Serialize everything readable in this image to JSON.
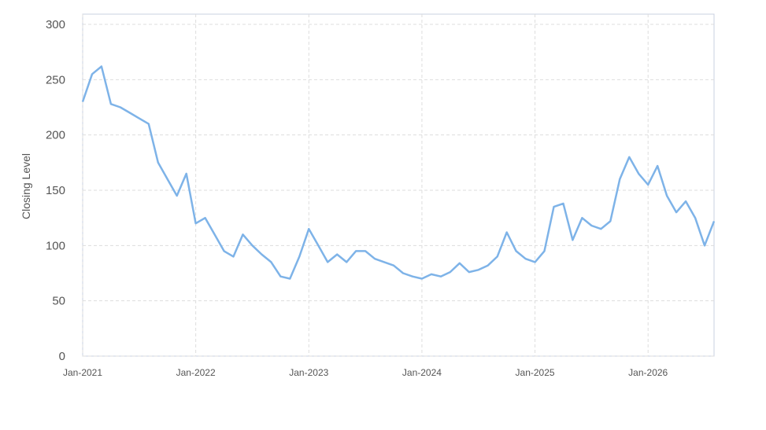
{
  "chart_data": {
    "type": "line",
    "y_label": "Closing Level",
    "x": [
      "2021-01",
      "2021-02",
      "2021-03",
      "2021-04",
      "2021-05",
      "2021-06",
      "2021-07",
      "2021-08",
      "2021-09",
      "2021-10",
      "2021-11",
      "2021-12",
      "2022-01",
      "2022-02",
      "2022-03",
      "2022-04",
      "2022-05",
      "2022-06",
      "2022-07",
      "2022-08",
      "2022-09",
      "2022-10",
      "2022-11",
      "2022-12",
      "2023-01",
      "2023-02",
      "2023-03",
      "2023-04",
      "2023-05",
      "2023-06",
      "2023-07",
      "2023-08",
      "2023-09",
      "2023-10",
      "2023-11",
      "2023-12",
      "2024-01",
      "2024-02",
      "2024-03",
      "2024-04",
      "2024-05",
      "2024-06",
      "2024-07",
      "2024-08",
      "2024-09",
      "2024-10",
      "2024-11",
      "2024-12",
      "2025-01",
      "2025-02",
      "2025-03",
      "2025-04",
      "2025-05",
      "2025-06",
      "2025-07",
      "2025-08",
      "2025-09",
      "2025-10",
      "2025-11",
      "2025-12",
      "2026-01",
      "2026-02",
      "2026-03",
      "2026-04",
      "2026-05",
      "2026-06",
      "2026-07",
      "2026-08"
    ],
    "series": [
      {
        "name": "Closing Level",
        "color": "#7eb3e8",
        "values": [
          230,
          255,
          262,
          228,
          225,
          220,
          215,
          210,
          175,
          160,
          145,
          165,
          120,
          125,
          110,
          95,
          90,
          110,
          100,
          92,
          85,
          72,
          70,
          90,
          115,
          100,
          85,
          92,
          85,
          95,
          95,
          88,
          85,
          82,
          75,
          72,
          70,
          74,
          72,
          76,
          84,
          76,
          78,
          82,
          90,
          112,
          95,
          88,
          85,
          95,
          135,
          138,
          105,
          125,
          118,
          115,
          122,
          160,
          180,
          165,
          155,
          172,
          145,
          130,
          140,
          125,
          100,
          122
        ]
      }
    ],
    "xlim": [
      "2021-01",
      "2026-08"
    ],
    "xticks": [
      {
        "value": "2021-01",
        "label": "Jan-2021"
      },
      {
        "value": "2022-01",
        "label": "Jan-2022"
      },
      {
        "value": "2023-01",
        "label": "Jan-2023"
      },
      {
        "value": "2024-01",
        "label": "Jan-2024"
      },
      {
        "value": "2025-01",
        "label": "Jan-2025"
      },
      {
        "value": "2026-01",
        "label": "Jan-2026"
      }
    ],
    "ylim": [
      0,
      300
    ],
    "yticks": [
      0,
      50,
      100,
      150,
      200,
      250,
      300
    ],
    "grid": true
  }
}
